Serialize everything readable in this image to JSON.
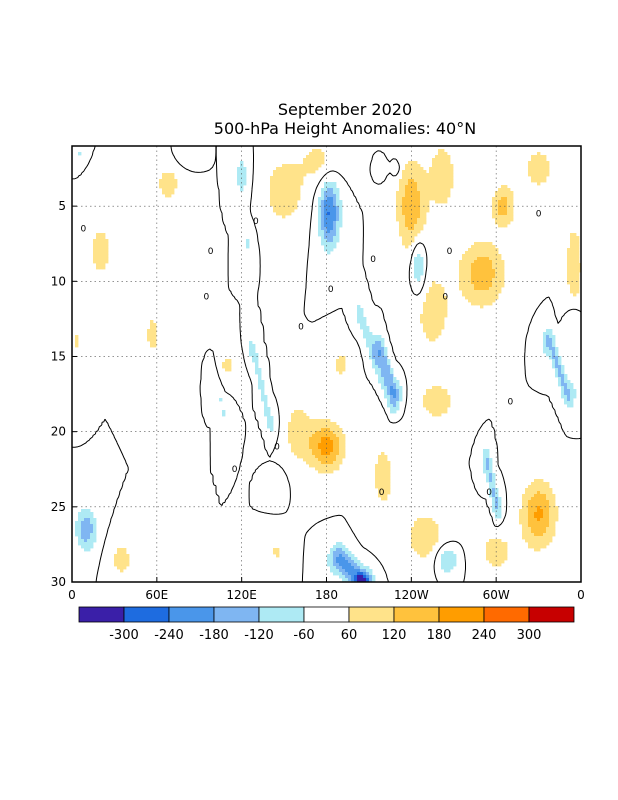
{
  "chart_data": {
    "type": "heatmap",
    "title": "September 2020",
    "subtitle": "500-hPa Height Anomalies: 40°N",
    "x_ticks": [
      "0",
      "60E",
      "120E",
      "180",
      "120W",
      "60W",
      "0"
    ],
    "x_tick_values": [
      0,
      60,
      120,
      180,
      240,
      300,
      360
    ],
    "xlim": [
      0,
      360
    ],
    "y_ticks": [
      "5",
      "10",
      "15",
      "20",
      "25",
      "30"
    ],
    "y_tick_values": [
      5,
      10,
      15,
      20,
      25,
      30
    ],
    "ylim": [
      1,
      30
    ],
    "y_reversed": true,
    "grid": true,
    "contour_label": "0",
    "colorbar": {
      "placement": "bottom",
      "labels": [
        "-300",
        "-240",
        "-180",
        "-120",
        "-60",
        "60",
        "120",
        "180",
        "240",
        "300"
      ],
      "boundaries": [
        -300,
        -240,
        -180,
        -120,
        -60,
        60,
        120,
        180,
        240,
        300
      ],
      "colors": [
        "#3a1fa8",
        "#1e6ce0",
        "#4a96ea",
        "#7fb6f2",
        "#aeeaf4",
        "#ffffff",
        "#ffe38a",
        "#ffc23d",
        "#ff9d00",
        "#ff6a00",
        "#c70000"
      ]
    },
    "features": [
      {
        "lon": 20,
        "day": 3,
        "value": 60,
        "shape": "blob",
        "sx": 6,
        "sy": 0.8
      },
      {
        "lon": 68,
        "day": 3.5,
        "value": 90,
        "shape": "blob",
        "sx": 9,
        "sy": 1.3
      },
      {
        "lon": 150,
        "day": 4,
        "value": 110,
        "shape": "blob",
        "sx": 14,
        "sy": 2.2
      },
      {
        "lon": 175,
        "day": 2,
        "value": 80,
        "shape": "blob",
        "sx": 14,
        "sy": 1.5
      },
      {
        "lon": 240,
        "day": 5,
        "value": 170,
        "shape": "blob",
        "sx": 10,
        "sy": 3
      },
      {
        "lon": 262,
        "day": 3,
        "value": 100,
        "shape": "blob",
        "sx": 10,
        "sy": 2.5
      },
      {
        "lon": 305,
        "day": 5,
        "value": 150,
        "shape": "blob",
        "sx": 8,
        "sy": 1.4
      },
      {
        "lon": 330,
        "day": 2.5,
        "value": 90,
        "shape": "blob",
        "sx": 12,
        "sy": 1.6
      },
      {
        "lon": 355,
        "day": 9,
        "value": 110,
        "shape": "blob",
        "sx": 6,
        "sy": 3
      },
      {
        "lon": 20,
        "day": 8,
        "value": 90,
        "shape": "blob",
        "sx": 9,
        "sy": 2
      },
      {
        "lon": 290,
        "day": 9.5,
        "value": 160,
        "shape": "blob",
        "sx": 16,
        "sy": 2.2
      },
      {
        "lon": 255,
        "day": 12,
        "value": 90,
        "shape": "blob",
        "sx": 14,
        "sy": 3
      },
      {
        "lon": 57,
        "day": 13.5,
        "value": 75,
        "shape": "blob",
        "sx": 7,
        "sy": 2
      },
      {
        "lon": 4,
        "day": 14,
        "value": 70,
        "shape": "blob",
        "sx": 4,
        "sy": 1.8
      },
      {
        "lon": 110,
        "day": 15.5,
        "value": 70,
        "shape": "blob",
        "sx": 9,
        "sy": 1.2
      },
      {
        "lon": 190,
        "day": 15.5,
        "value": 75,
        "shape": "blob",
        "sx": 7,
        "sy": 1.3
      },
      {
        "lon": 258,
        "day": 18,
        "value": 90,
        "shape": "blob",
        "sx": 14,
        "sy": 1.5
      },
      {
        "lon": 180,
        "day": 21,
        "value": 210,
        "shape": "blob",
        "sx": 12,
        "sy": 1.6
      },
      {
        "lon": 160,
        "day": 20,
        "value": 100,
        "shape": "blob",
        "sx": 10,
        "sy": 2
      },
      {
        "lon": 220,
        "day": 23,
        "value": 80,
        "shape": "blob",
        "sx": 10,
        "sy": 3
      },
      {
        "lon": 330,
        "day": 25.5,
        "value": 190,
        "shape": "blob",
        "sx": 12,
        "sy": 2.2
      },
      {
        "lon": 250,
        "day": 27,
        "value": 95,
        "shape": "blob",
        "sx": 16,
        "sy": 2
      },
      {
        "lon": 300,
        "day": 28,
        "value": 85,
        "shape": "blob",
        "sx": 14,
        "sy": 1.5
      },
      {
        "lon": 35,
        "day": 28.5,
        "value": 90,
        "shape": "blob",
        "sx": 8,
        "sy": 1.2
      },
      {
        "lon": 145,
        "day": 28,
        "value": 70,
        "shape": "blob",
        "sx": 6,
        "sy": 1
      },
      {
        "lon": 80,
        "day": 1.5,
        "value": -60,
        "shape": "blob",
        "sx": 6,
        "sy": 0.7
      },
      {
        "lon": 6,
        "day": 1.5,
        "value": -70,
        "shape": "blob",
        "sx": 4,
        "sy": 0.6
      },
      {
        "lon": 120,
        "day": 3,
        "value": -90,
        "shape": "blob",
        "sx": 5,
        "sy": 1.6
      },
      {
        "lon": 124,
        "day": 7.5,
        "value": -70,
        "shape": "blob",
        "sx": 4,
        "sy": 1.2
      },
      {
        "lon": 182,
        "day": 5.5,
        "value": -250,
        "shape": "blob",
        "sx": 7,
        "sy": 2.2
      },
      {
        "lon": 219,
        "day": 2.5,
        "value": -65,
        "shape": "blob",
        "sx": 3,
        "sy": 0.5
      },
      {
        "lon": 245,
        "day": 9,
        "value": -150,
        "shape": "blob",
        "sx": 5,
        "sy": 1.8
      },
      {
        "lon": 218,
        "day": 14.5,
        "value": -170,
        "shape": "line",
        "lon2": 228,
        "day2": 17.5,
        "width": 5
      },
      {
        "lon": 203,
        "day": 12,
        "value": -90,
        "shape": "line",
        "lon2": 225,
        "day2": 18,
        "width": 4
      },
      {
        "lon": 100,
        "day": 16,
        "value": -70,
        "shape": "line",
        "lon2": 108,
        "day2": 19,
        "width": 4
      },
      {
        "lon": 128,
        "day": 14.5,
        "value": -90,
        "shape": "line",
        "lon2": 140,
        "day2": 19.5,
        "width": 5
      },
      {
        "lon": 338,
        "day": 14,
        "value": -150,
        "shape": "line",
        "lon2": 350,
        "day2": 17.5,
        "width": 6
      },
      {
        "lon": 355,
        "day": 13,
        "value": -80,
        "shape": "blob",
        "sx": 5,
        "sy": 1.5
      },
      {
        "lon": 294,
        "day": 22,
        "value": -150,
        "shape": "line",
        "lon2": 300,
        "day2": 25,
        "width": 4
      },
      {
        "lon": 10,
        "day": 26.5,
        "value": -170,
        "shape": "blob",
        "sx": 7,
        "sy": 1.4
      },
      {
        "lon": 190,
        "day": 28.5,
        "value": -210,
        "shape": "line",
        "lon2": 205,
        "day2": 30,
        "width": 8
      },
      {
        "lon": 205,
        "day": 30,
        "value": -240,
        "shape": "blob",
        "sx": 4,
        "sy": 0.6
      },
      {
        "lon": 265,
        "day": 28.5,
        "value": -130,
        "shape": "blob",
        "sx": 8,
        "sy": 1
      },
      {
        "lon": 229,
        "day": 2.5,
        "value": -80,
        "shape": "blob",
        "sx": 3,
        "sy": 0.5
      },
      {
        "lon": 145,
        "day": 23.5,
        "value": -60,
        "shape": "blob",
        "sx": 5,
        "sy": 0.8
      }
    ]
  }
}
